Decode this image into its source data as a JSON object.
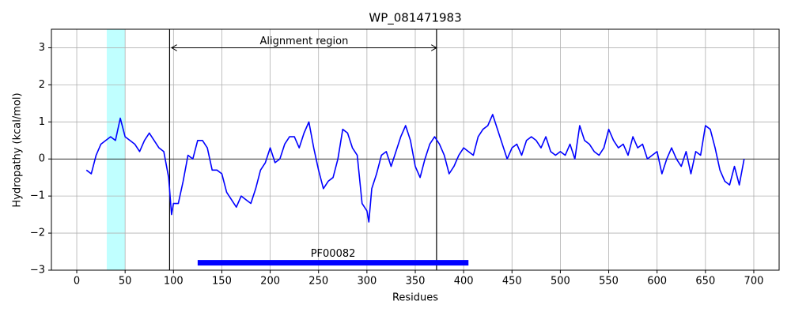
{
  "chart_data": {
    "type": "line",
    "title": "WP_081471983",
    "xlabel": "Residues",
    "ylabel": "Hydropathy (kcal/mol)",
    "x": [
      10,
      15,
      20,
      25,
      30,
      35,
      40,
      45,
      50,
      55,
      60,
      65,
      70,
      75,
      80,
      85,
      90,
      95,
      98,
      100,
      105,
      110,
      115,
      120,
      125,
      130,
      135,
      140,
      145,
      150,
      155,
      160,
      165,
      170,
      175,
      180,
      185,
      190,
      195,
      200,
      205,
      210,
      215,
      220,
      225,
      230,
      235,
      240,
      245,
      250,
      255,
      260,
      265,
      270,
      275,
      280,
      285,
      290,
      295,
      300,
      302,
      305,
      310,
      315,
      320,
      325,
      330,
      335,
      340,
      345,
      350,
      355,
      360,
      365,
      370,
      375,
      380,
      385,
      390,
      395,
      400,
      405,
      410,
      415,
      420,
      425,
      430,
      435,
      440,
      445,
      450,
      455,
      460,
      465,
      470,
      475,
      480,
      485,
      490,
      495,
      500,
      505,
      510,
      515,
      520,
      525,
      530,
      535,
      540,
      545,
      550,
      555,
      560,
      565,
      570,
      575,
      580,
      585,
      590,
      595,
      600,
      605,
      610,
      615,
      620,
      625,
      630,
      635,
      640,
      645,
      650,
      655,
      660,
      665,
      670,
      675,
      680,
      685,
      690
    ],
    "series": [
      {
        "name": "Hydropathy",
        "color": "#0000ff",
        "values": [
          -0.3,
          -0.4,
          0.1,
          0.4,
          0.5,
          0.6,
          0.5,
          1.1,
          0.6,
          0.5,
          0.4,
          0.2,
          0.5,
          0.7,
          0.5,
          0.3,
          0.2,
          -0.5,
          -1.5,
          -1.2,
          -1.2,
          -0.6,
          0.1,
          0.0,
          0.5,
          0.5,
          0.3,
          -0.3,
          -0.3,
          -0.4,
          -0.9,
          -1.1,
          -1.3,
          -1.0,
          -1.1,
          -1.2,
          -0.8,
          -0.3,
          -0.1,
          0.3,
          -0.1,
          0.0,
          0.4,
          0.6,
          0.6,
          0.3,
          0.7,
          1.0,
          0.3,
          -0.3,
          -0.8,
          -0.6,
          -0.5,
          0.0,
          0.8,
          0.7,
          0.3,
          0.1,
          -1.2,
          -1.4,
          -1.7,
          -0.8,
          -0.4,
          0.1,
          0.2,
          -0.2,
          0.2,
          0.6,
          0.9,
          0.5,
          -0.2,
          -0.5,
          0.0,
          0.4,
          0.6,
          0.4,
          0.1,
          -0.4,
          -0.2,
          0.1,
          0.3,
          0.2,
          0.1,
          0.6,
          0.8,
          0.9,
          1.2,
          0.8,
          0.4,
          0.0,
          0.3,
          0.4,
          0.1,
          0.5,
          0.6,
          0.5,
          0.3,
          0.6,
          0.2,
          0.1,
          0.2,
          0.1,
          0.4,
          0.0,
          0.9,
          0.5,
          0.4,
          0.2,
          0.1,
          0.3,
          0.8,
          0.5,
          0.3,
          0.4,
          0.1,
          0.6,
          0.3,
          0.4,
          0.0,
          0.1,
          0.2,
          -0.4,
          0.0,
          0.3,
          0.0,
          -0.2,
          0.2,
          -0.4,
          0.2,
          0.1,
          0.9,
          0.8,
          0.3,
          -0.3,
          -0.6,
          -0.7,
          -0.2,
          -0.7,
          0.0
        ]
      }
    ],
    "xlim": [
      -26.2,
      726.2
    ],
    "ylim": [
      -3,
      3.5
    ],
    "xticks": [
      0,
      50,
      100,
      150,
      200,
      250,
      300,
      350,
      400,
      450,
      500,
      550,
      600,
      650,
      700
    ],
    "yticks": [
      {
        "value": -3,
        "label": "−3"
      },
      {
        "value": -2,
        "label": "−2"
      },
      {
        "value": -1,
        "label": "−1"
      },
      0,
      1,
      2,
      3
    ],
    "grid": true,
    "hline": 0,
    "shaded_regions": [
      {
        "start": 31,
        "end": 50,
        "color": "#c0ffff"
      }
    ],
    "vlines": [
      96,
      372
    ],
    "arrow": {
      "label": "Alignment region",
      "start": 98,
      "end": 372,
      "y": 3
    },
    "domains": [
      {
        "label": "PF00082",
        "start": 125,
        "end": 405,
        "y": -2.8,
        "color": "#0000ff"
      }
    ]
  }
}
